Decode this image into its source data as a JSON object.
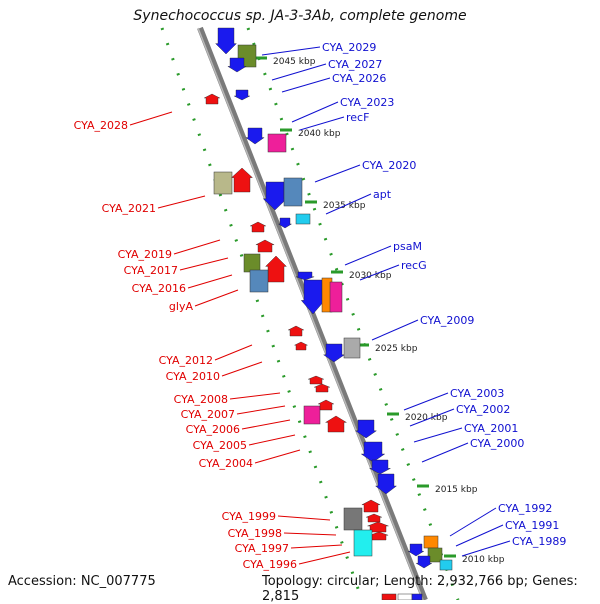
{
  "title": "Synechococcus sp. JA-3-3Ab, complete genome",
  "accession": "Accession: NC_007775",
  "summary": "Topology: circular; Length: 2,932,766 bp; Genes: 2,815",
  "colors": {
    "forward_label": "#e00000",
    "reverse_label": "#1010d0",
    "backbone": "#808080"
  },
  "kbp_marks": [
    "2045 kbp",
    "2040 kbp",
    "2035 kbp",
    "2030 kbp",
    "2025 kbp",
    "2020 kbp",
    "2015 kbp",
    "2010 kbp"
  ],
  "left_labels": [
    "CYA_2028",
    "CYA_2021",
    "CYA_2019",
    "CYA_2017",
    "CYA_2016",
    "glyA",
    "CYA_2012",
    "CYA_2010",
    "CYA_2008",
    "CYA_2007",
    "CYA_2006",
    "CYA_2005",
    "CYA_2004",
    "CYA_1999",
    "CYA_1998",
    "CYA_1997",
    "CYA_1996"
  ],
  "right_labels": [
    "CYA_2029",
    "CYA_2027",
    "CYA_2026",
    "CYA_2023",
    "recF",
    "CYA_2020",
    "apt",
    "psaM",
    "recG",
    "CYA_2009",
    "CYA_2003",
    "CYA_2002",
    "CYA_2001",
    "CYA_2000",
    "CYA_1992",
    "CYA_1991",
    "CYA_1989"
  ]
}
